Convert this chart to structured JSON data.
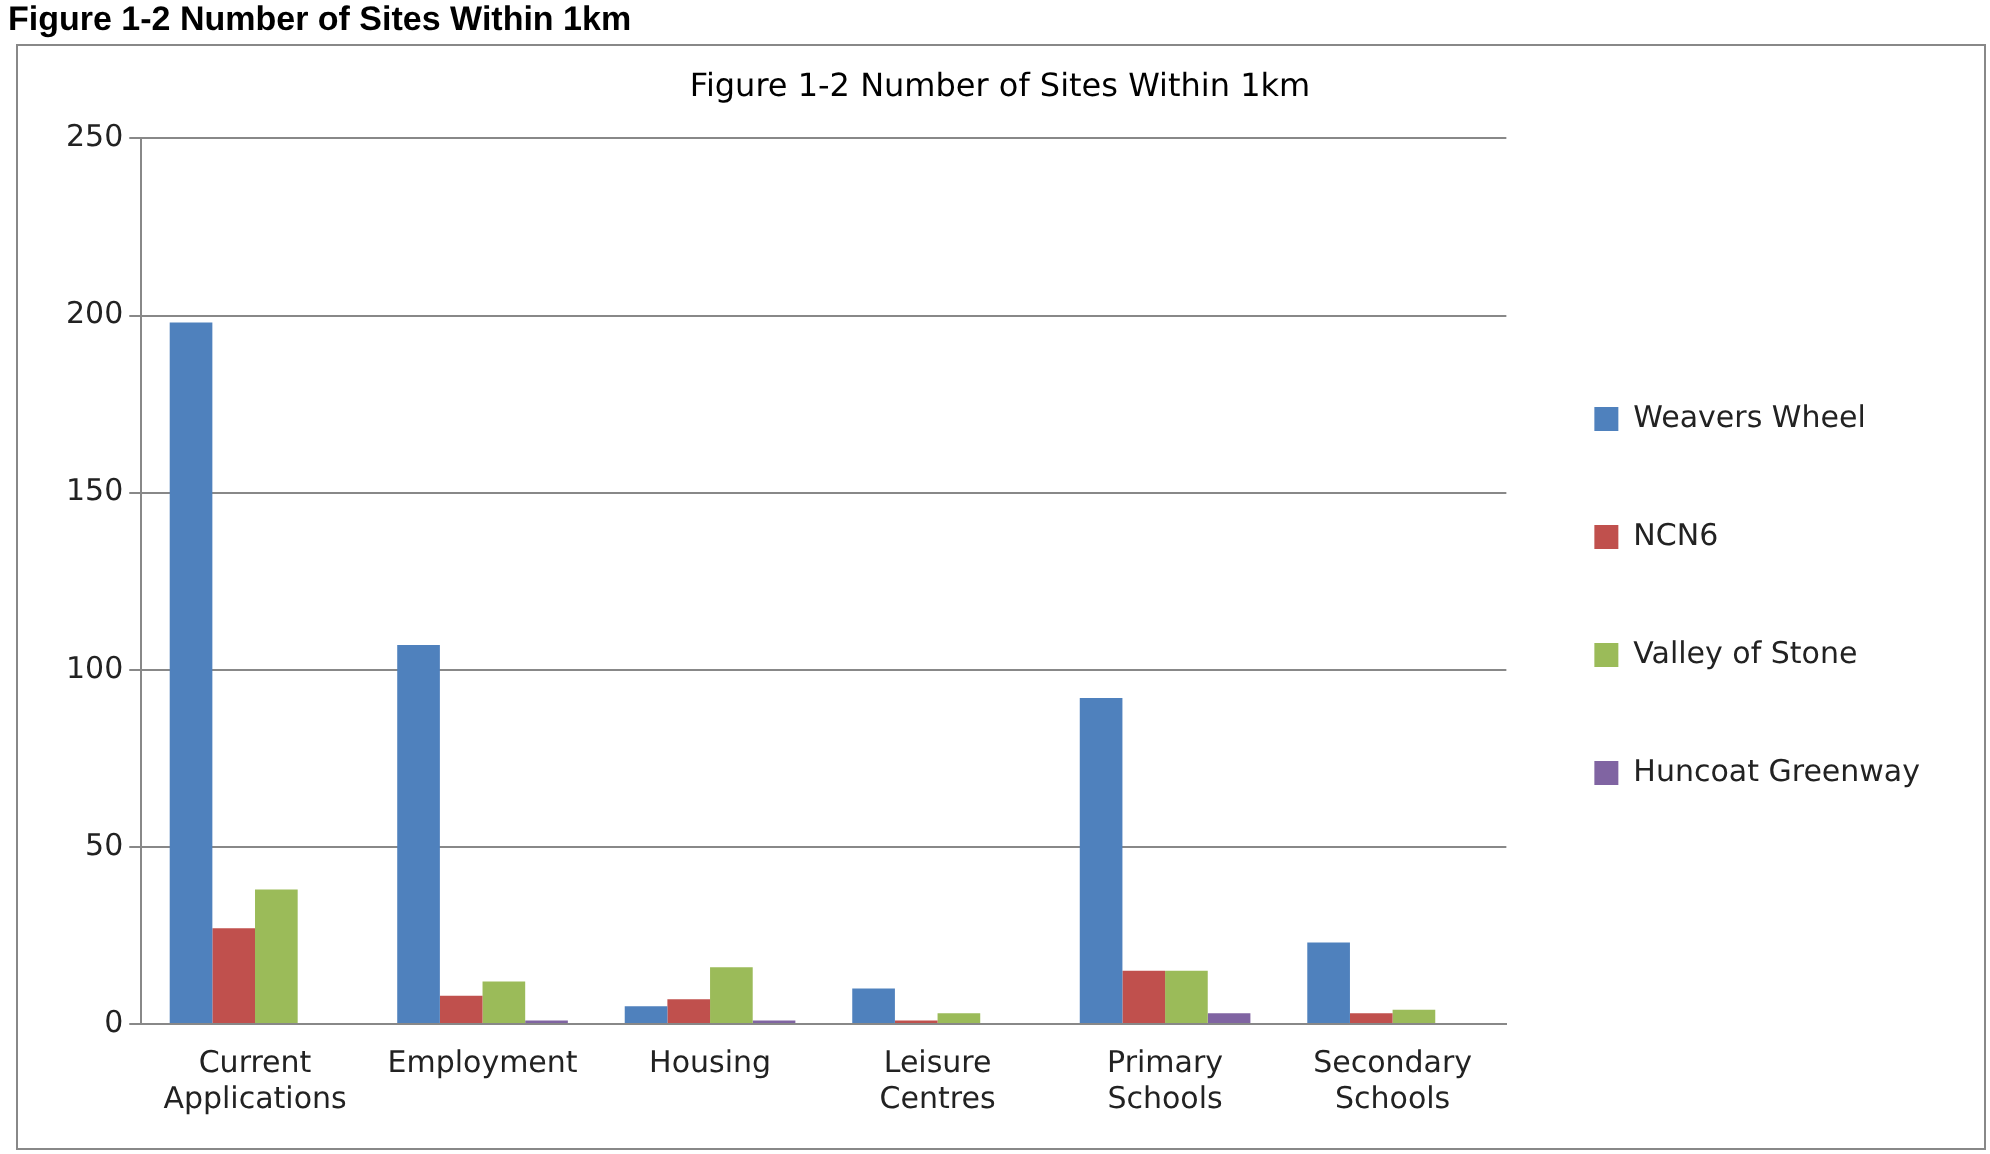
{
  "chart_data": {
    "type": "bar",
    "title": "Figure 1-2 Number of Sites Within 1km",
    "annotations": [
      "Figure 1-2 Number of Sites Within 1km"
    ],
    "categories": [
      "Current Applications",
      "Employment",
      "Housing",
      "Leisure Centres",
      "Primary Schools",
      "Secondary Schools"
    ],
    "series": [
      {
        "name": "Weavers Wheel",
        "color": "#4f81bd",
        "values": [
          198,
          107,
          5,
          10,
          92,
          23
        ]
      },
      {
        "name": "NCN6",
        "color": "#c0504d",
        "values": [
          27,
          8,
          7,
          1,
          15,
          3
        ]
      },
      {
        "name": "Valley of Stone",
        "color": "#9bbb59",
        "values": [
          38,
          12,
          16,
          3,
          15,
          4
        ]
      },
      {
        "name": "Huncoat Greenway",
        "color": "#8064a2",
        "values": [
          0,
          1,
          1,
          0,
          3,
          0
        ]
      }
    ],
    "ylim": [
      0,
      250
    ],
    "yticks": [
      0,
      50,
      100,
      150,
      200,
      250
    ],
    "grid": "y",
    "legend": "right"
  }
}
